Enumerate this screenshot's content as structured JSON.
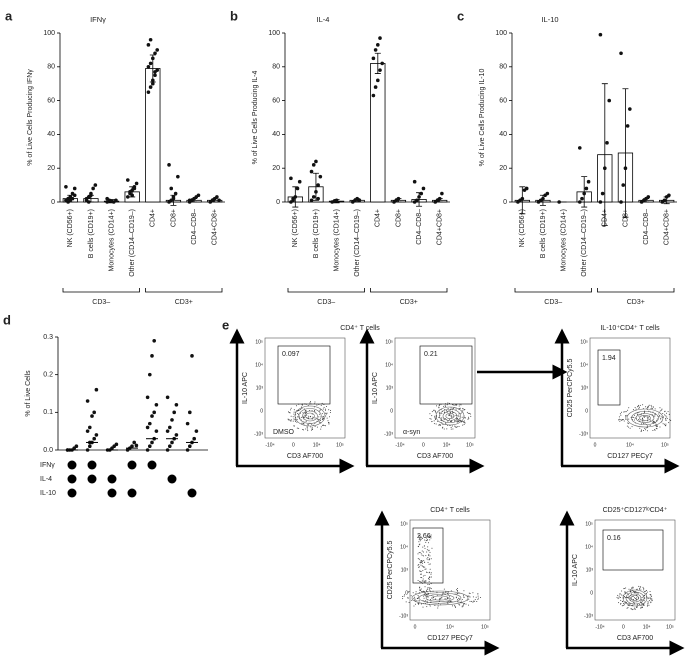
{
  "chart_data": [
    {
      "type": "bar",
      "panel": "a",
      "title": "IFNγ",
      "y_label": "% of Live Cells Producing IFNγ",
      "categories": [
        "NK (CD56+)",
        "B cells (CD19+)",
        "Monocytes (CD14+)",
        "Other (CD14–CD19–)",
        "CD4+",
        "CD8+",
        "CD4–CD8–",
        "CD4+CD8+"
      ],
      "values": [
        2,
        2,
        0.5,
        6,
        79,
        1,
        1,
        1
      ],
      "errors": [
        2,
        2,
        1,
        3,
        8,
        3,
        1,
        1
      ],
      "points": [
        [
          1,
          2,
          3,
          5,
          8,
          9,
          0,
          1,
          2,
          4
        ],
        [
          1,
          3,
          5,
          8,
          10,
          2,
          0,
          4
        ],
        [
          0,
          1,
          0.5,
          0,
          1,
          2
        ],
        [
          3,
          5,
          7,
          9,
          11,
          13,
          6,
          4,
          8
        ],
        [
          65,
          68,
          72,
          75,
          78,
          80,
          82,
          85,
          88,
          90,
          93,
          96,
          70,
          77
        ],
        [
          0,
          1,
          2,
          5,
          15,
          22,
          8,
          3
        ],
        [
          0,
          1,
          2,
          3,
          4,
          1
        ],
        [
          0,
          1,
          2,
          3,
          1
        ]
      ],
      "groups": [
        {
          "label": "CD3–",
          "size": 4
        },
        {
          "label": "CD3+",
          "size": 4
        }
      ],
      "ylim": [
        0,
        100
      ],
      "yticks": [
        0,
        20,
        40,
        60,
        80,
        100
      ]
    },
    {
      "type": "bar",
      "panel": "b",
      "title": "IL-4",
      "y_label": "% of Live Cells Producing IL-4",
      "categories": [
        "NK (CD56+)",
        "B cells (CD19+)",
        "Monocytes (CD14+)",
        "Other (CD14–CD19–)",
        "CD4+",
        "CD8+",
        "CD4–CD8–",
        "CD4+CD8+"
      ],
      "values": [
        3,
        9,
        0.5,
        1,
        82,
        1,
        1.5,
        1
      ],
      "errors": [
        6,
        8,
        1,
        1,
        6,
        1,
        4,
        1
      ],
      "points": [
        [
          0,
          1,
          3,
          8,
          12,
          14,
          2
        ],
        [
          1,
          3,
          6,
          10,
          15,
          18,
          22,
          24,
          2
        ],
        [
          0,
          0.5,
          1
        ],
        [
          0,
          1,
          2,
          1
        ],
        [
          63,
          68,
          72,
          78,
          82,
          85,
          90,
          93,
          97
        ],
        [
          0,
          1,
          2
        ],
        [
          0,
          1,
          3,
          5,
          8,
          12
        ],
        [
          0,
          1,
          2,
          5
        ]
      ],
      "groups": [
        {
          "label": "CD3–",
          "size": 4
        },
        {
          "label": "CD3+",
          "size": 4
        }
      ],
      "ylim": [
        0,
        100
      ],
      "yticks": [
        0,
        20,
        40,
        60,
        80,
        100
      ]
    },
    {
      "type": "bar",
      "panel": "c",
      "title": "IL-10",
      "y_label": "% of Live Cells Producing IL-10",
      "categories": [
        "NK (CD56+)",
        "B cells (CD19+)",
        "Monocytes (CD14+)",
        "Other (CD14–CD19–)",
        "CD4+",
        "CD8+",
        "CD4–CD8–",
        "CD4+CD8+"
      ],
      "values": [
        1,
        1,
        0,
        6,
        28,
        29,
        1,
        1
      ],
      "errors": [
        8,
        3,
        0,
        9,
        42,
        38,
        1,
        2
      ],
      "points": [
        [
          0,
          1,
          2,
          7,
          8
        ],
        [
          0,
          1,
          2,
          4,
          5
        ],
        [
          0
        ],
        [
          0,
          2,
          5,
          8,
          12,
          32
        ],
        [
          0,
          5,
          20,
          35,
          60,
          99
        ],
        [
          0,
          10,
          20,
          45,
          55,
          88
        ],
        [
          0,
          1,
          2,
          3
        ],
        [
          0,
          1,
          3,
          4
        ]
      ],
      "groups": [
        {
          "label": "CD3–",
          "size": 4
        },
        {
          "label": "CD3+",
          "size": 4
        }
      ],
      "ylim": [
        0,
        100
      ],
      "yticks": [
        0,
        20,
        40,
        60,
        80,
        100
      ]
    },
    {
      "type": "dot",
      "panel": "d",
      "y_label": "% of Live Cells",
      "points": [
        [
          0,
          0,
          0,
          0.005,
          0.01,
          0
        ],
        [
          0,
          0.01,
          0.02,
          0.03,
          0.04,
          0.05,
          0.06,
          0.09,
          0.1,
          0.16,
          0.13,
          0.02
        ],
        [
          0,
          0,
          0.005,
          0.01,
          0.015
        ],
        [
          0,
          0.005,
          0.01,
          0.02,
          0.012
        ],
        [
          0,
          0.01,
          0.02,
          0.03,
          0.05,
          0.06,
          0.07,
          0.09,
          0.1,
          0.12,
          0.14,
          0.2,
          0.25,
          0.29
        ],
        [
          0,
          0.01,
          0.02,
          0.03,
          0.04,
          0.05,
          0.06,
          0.08,
          0.1,
          0.12,
          0.14
        ],
        [
          0,
          0.01,
          0.02,
          0.03,
          0.05,
          0.07,
          0.1,
          0.25
        ]
      ],
      "medians": [
        0,
        0.02,
        0,
        0.005,
        0.03,
        0.03,
        0.02
      ],
      "row_labels": [
        "IFNγ",
        "IL-4",
        "IL-10"
      ],
      "matrix": [
        [
          1,
          1,
          0,
          1,
          1,
          0,
          0
        ],
        [
          1,
          1,
          1,
          0,
          0,
          1,
          0
        ],
        [
          1,
          0,
          1,
          1,
          0,
          0,
          1
        ]
      ],
      "ylim": [
        0,
        0.3
      ],
      "yticks": [
        {
          "value": 0,
          "label": "0.0"
        },
        0.1,
        0.2,
        0.3
      ]
    }
  ],
  "panel_e": {
    "label": "e",
    "plots": [
      {
        "title": "CD4⁺ T cells",
        "gate": "0.097",
        "condition": "DMSO",
        "y_label": "IL-10 APC",
        "x_label": "CD3 AF700",
        "x_ticks": [
          "-10⁴",
          "0",
          "10⁴",
          "10⁵"
        ],
        "y_ticks": [
          "10⁵",
          "10⁴",
          "10³",
          "0",
          "-10³"
        ]
      },
      {
        "gate": "0.21",
        "condition": "α-syn",
        "y_label": "IL-10 APC",
        "x_label": "CD3 AF700",
        "x_ticks": [
          "-10⁴",
          "0",
          "10⁴",
          "10⁵"
        ],
        "y_ticks": [
          "10⁵",
          "10⁴",
          "10³",
          "0",
          "-10³"
        ]
      },
      {
        "title": "IL-10⁺CD4⁺ T cells",
        "gate": "1.94",
        "y_label": "CD25 PerCPCy5.5",
        "x_label": "CD127 PECy7",
        "x_ticks": [
          "0",
          "10⁴",
          "10⁵"
        ],
        "y_ticks": [
          "10⁵",
          "10⁴",
          "10³",
          "0",
          "-10³"
        ]
      },
      {
        "title": "CD4⁺ T cells",
        "gate": "2.66",
        "y_label": "CD25 PerCPCy5.5",
        "x_label": "CD127 PECy7",
        "x_ticks": [
          "0",
          "10⁴",
          "10⁵"
        ],
        "y_ticks": [
          "10⁵",
          "10⁴",
          "10³",
          "0",
          "-10³"
        ]
      },
      {
        "title": "CD25⁺CD127ˡᵒCD4⁺",
        "gate": "0.16",
        "y_label": "IL-10 APC",
        "x_label": "CD3 AF700",
        "x_ticks": [
          "-10⁴",
          "0",
          "10⁴",
          "10⁵"
        ],
        "y_ticks": [
          "10⁵",
          "10⁴",
          "10³",
          "0",
          "-10³"
        ]
      }
    ]
  }
}
